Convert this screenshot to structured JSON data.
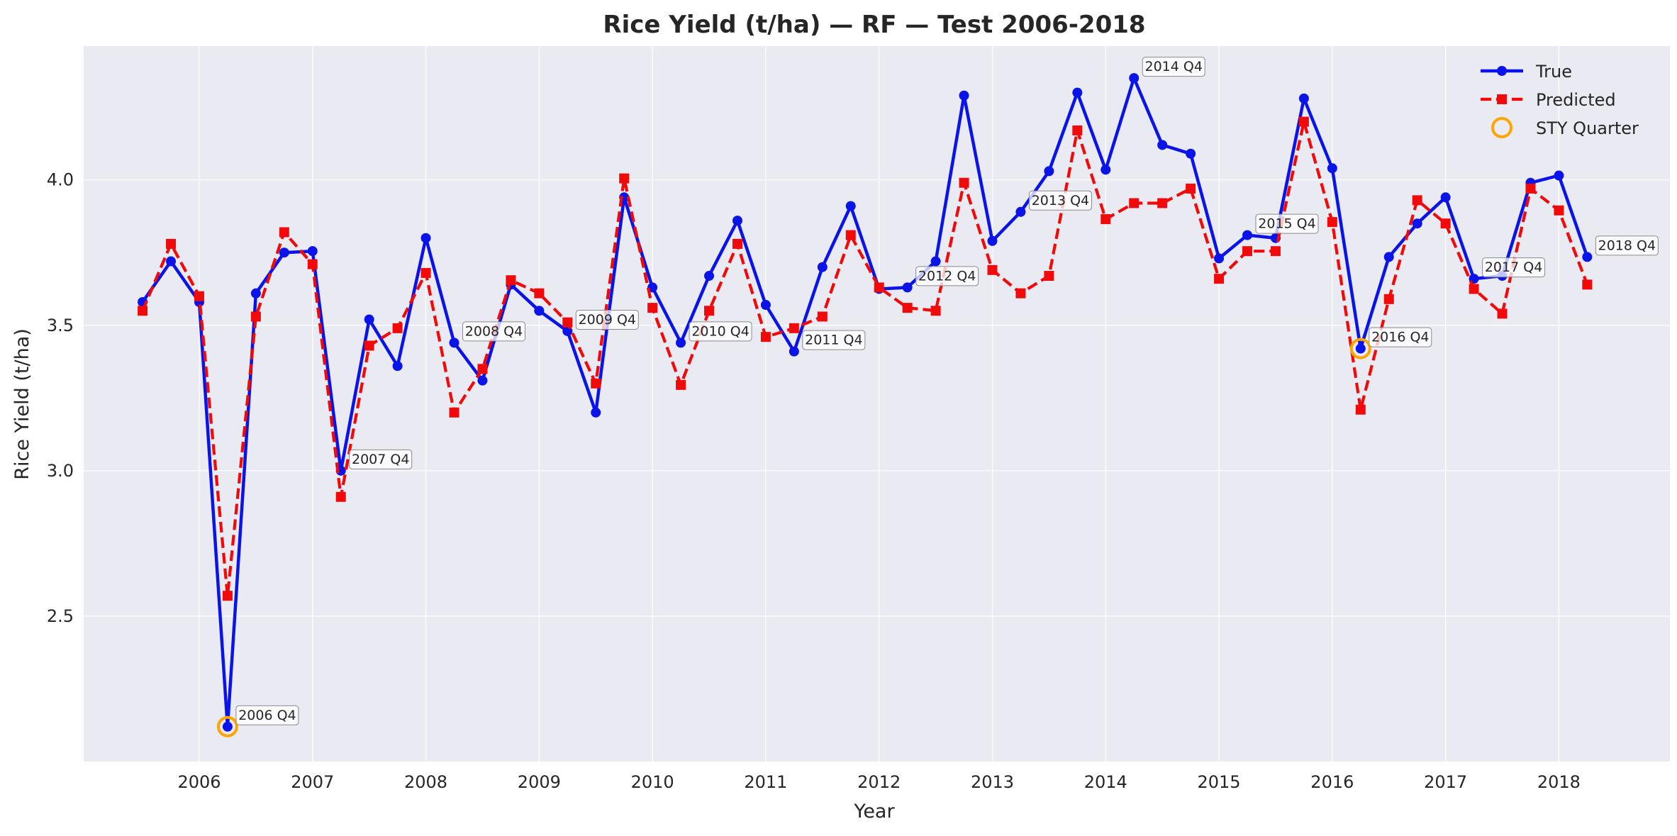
{
  "chart_data": {
    "type": "line",
    "title": "Rice Yield (t/ha) — RF — Test 2006-2018",
    "xlabel": "Year",
    "ylabel": "Rice Yield (t/ha)",
    "xlim": [
      2004.98,
      2018.98
    ],
    "ylim": [
      2.0,
      4.46
    ],
    "xticks": [
      2006,
      2007,
      2008,
      2009,
      2010,
      2011,
      2012,
      2013,
      2014,
      2015,
      2016,
      2017,
      2018
    ],
    "yticks": [
      2.5,
      3.0,
      3.5,
      4.0
    ],
    "grid": true,
    "legend_position": "top-right",
    "x": [
      2005.5,
      2005.75,
      2006.0,
      2006.25,
      2006.5,
      2006.75,
      2007.0,
      2007.25,
      2007.5,
      2007.75,
      2008.0,
      2008.25,
      2008.5,
      2008.75,
      2009.0,
      2009.25,
      2009.5,
      2009.75,
      2010.0,
      2010.25,
      2010.5,
      2010.75,
      2011.0,
      2011.25,
      2011.5,
      2011.75,
      2012.0,
      2012.25,
      2012.5,
      2012.75,
      2013.0,
      2013.25,
      2013.5,
      2013.75,
      2014.0,
      2014.25,
      2014.5,
      2014.75,
      2015.0,
      2015.25,
      2015.5,
      2015.75,
      2016.0,
      2016.25,
      2016.5,
      2016.75,
      2017.0,
      2017.25,
      2017.5,
      2017.75,
      2018.0,
      2018.25
    ],
    "series": [
      {
        "name": "True",
        "color": "#0a14e8",
        "style": "solid",
        "marker": "circle",
        "values": [
          3.58,
          3.72,
          3.58,
          2.12,
          3.61,
          3.75,
          3.755,
          3.0,
          3.52,
          3.36,
          3.8,
          3.44,
          3.31,
          3.64,
          3.55,
          3.48,
          3.2,
          3.94,
          3.63,
          3.44,
          3.67,
          3.86,
          3.57,
          3.41,
          3.7,
          3.91,
          3.625,
          3.63,
          3.72,
          4.29,
          3.79,
          3.89,
          4.03,
          4.3,
          4.035,
          4.35,
          4.12,
          4.09,
          3.73,
          3.81,
          3.8,
          4.28,
          4.04,
          3.42,
          3.735,
          3.85,
          3.94,
          3.66,
          3.67,
          3.99,
          4.015,
          3.735
        ]
      },
      {
        "name": "Predicted",
        "color": "#f00a0a",
        "style": "dashed",
        "marker": "square",
        "values": [
          3.55,
          3.78,
          3.6,
          2.57,
          3.53,
          3.82,
          3.71,
          2.91,
          3.43,
          3.49,
          3.68,
          3.2,
          3.35,
          3.655,
          3.61,
          3.51,
          3.3,
          4.005,
          3.56,
          3.295,
          3.55,
          3.78,
          3.46,
          3.49,
          3.53,
          3.81,
          3.63,
          3.56,
          3.55,
          3.99,
          3.69,
          3.61,
          3.67,
          4.17,
          3.865,
          3.92,
          3.92,
          3.97,
          3.66,
          3.755,
          3.755,
          4.2,
          3.855,
          3.21,
          3.59,
          3.93,
          3.85,
          3.625,
          3.54,
          3.97,
          3.895,
          3.64
        ]
      }
    ],
    "highlight": {
      "name": "STY Quarter",
      "color": "#ffa500",
      "points": [
        [
          2006.25,
          2.12
        ],
        [
          2016.25,
          3.42
        ]
      ]
    },
    "annotations": [
      {
        "text": "2006 Q4",
        "x": 2006.25,
        "y": 2.12
      },
      {
        "text": "2007 Q4",
        "x": 2007.25,
        "y": 3.0
      },
      {
        "text": "2008 Q4",
        "x": 2008.25,
        "y": 3.44
      },
      {
        "text": "2009 Q4",
        "x": 2009.25,
        "y": 3.48
      },
      {
        "text": "2010 Q4",
        "x": 2010.25,
        "y": 3.44
      },
      {
        "text": "2011 Q4",
        "x": 2011.25,
        "y": 3.41
      },
      {
        "text": "2012 Q4",
        "x": 2012.25,
        "y": 3.63
      },
      {
        "text": "2013 Q4",
        "x": 2013.25,
        "y": 3.89
      },
      {
        "text": "2014 Q4",
        "x": 2014.25,
        "y": 4.35
      },
      {
        "text": "2015 Q4",
        "x": 2015.25,
        "y": 3.81
      },
      {
        "text": "2016 Q4",
        "x": 2016.25,
        "y": 3.42
      },
      {
        "text": "2017 Q4",
        "x": 2017.25,
        "y": 3.66
      },
      {
        "text": "2018 Q4",
        "x": 2018.25,
        "y": 3.735
      }
    ]
  }
}
